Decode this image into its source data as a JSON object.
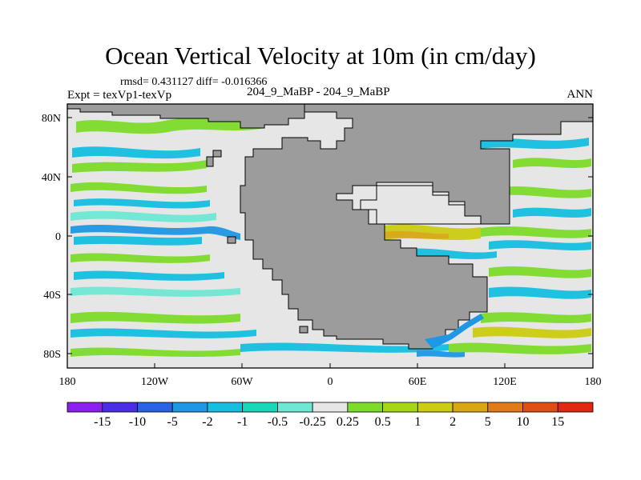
{
  "title": "Ocean Vertical Velocity at 10m (in cm/day)",
  "stats_line": "rmsd= 0.431127 diff= -0.016366",
  "experiment": "Expt = texVp1-texVp",
  "case_names": "204_9_MaBP - 204_9_MaBP",
  "season": "ANN",
  "lat_ticks": [
    "80N",
    "40N",
    "0",
    "40S",
    "80S"
  ],
  "lon_ticks": [
    "180",
    "120W",
    "60W",
    "0",
    "60E",
    "120E",
    "180"
  ],
  "colorbar": {
    "labels": [
      "-15",
      "-10",
      "-5",
      "-2",
      "-1",
      "-0.5",
      "-0.25",
      "0.25",
      "0.5",
      "1",
      "2",
      "5",
      "10",
      "15"
    ],
    "colors": [
      "#8a1ff0",
      "#4b2de8",
      "#2a62e6",
      "#1e97e4",
      "#16bfe0",
      "#19d8b8",
      "#6ee8d5",
      "#e6e6e6",
      "#7ddc2a",
      "#a4d614",
      "#cccc14",
      "#d8a814",
      "#e07a14",
      "#e04e14",
      "#e02812"
    ]
  },
  "colors": {
    "land": "#9c9c9c",
    "ocean_neutral": "#e6e6e6",
    "frame": "#000000"
  }
}
